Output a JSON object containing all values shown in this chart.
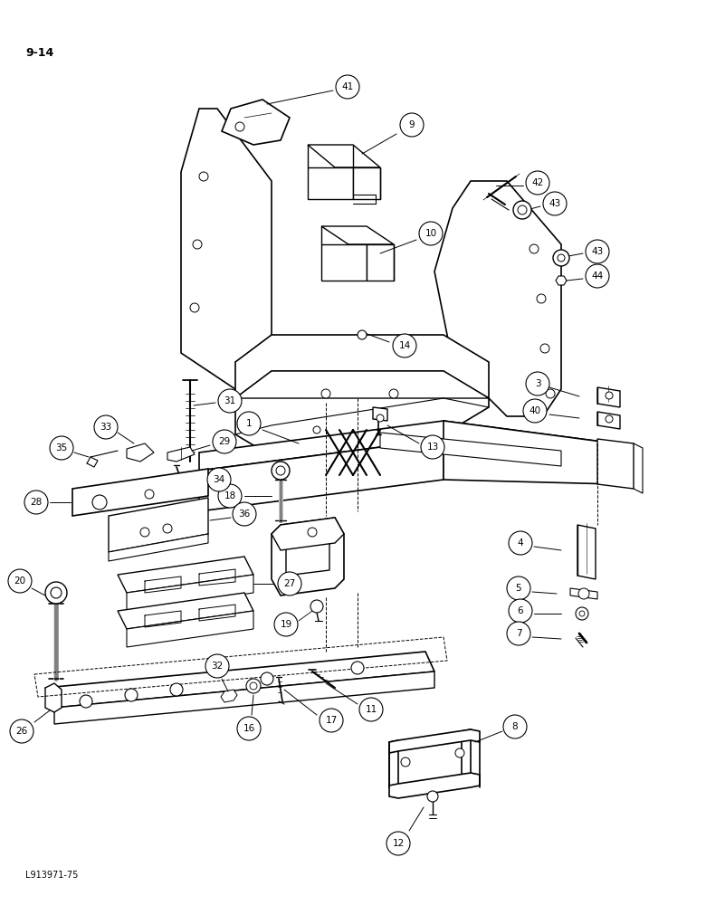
{
  "background_color": "#ffffff",
  "page_label": "9-14",
  "bottom_label": "L913971-75",
  "fig_width": 7.8,
  "fig_height": 10.0,
  "dpi": 100
}
